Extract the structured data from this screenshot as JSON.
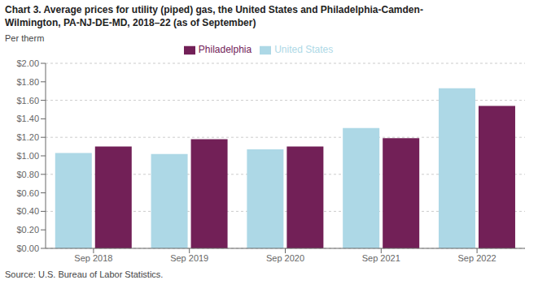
{
  "chart_data": {
    "type": "bar",
    "title": "Chart 3. Average prices for utility (piped) gas, the United States and Philadelphia-Camden-\nWilmington, PA-NJ-DE-MD, 2018–22 (as of September)",
    "y_label": "Per therm",
    "source": "Source: U.S. Bureau of Labor Statistics.",
    "categories": [
      "Sep 2018",
      "Sep 2019",
      "Sep 2020",
      "Sep 2021",
      "Sep 2022"
    ],
    "series": [
      {
        "name": "United States",
        "color": "#add8e6",
        "values": [
          1.03,
          1.02,
          1.07,
          1.3,
          1.73
        ]
      },
      {
        "name": "Philadelphia",
        "color": "#722057",
        "values": [
          1.1,
          1.18,
          1.1,
          1.19,
          1.54
        ]
      }
    ],
    "ylim": [
      0.0,
      2.0
    ],
    "yticks": [
      {
        "value": 0.0,
        "label": "$0.00"
      },
      {
        "value": 0.2,
        "label": "$0.20"
      },
      {
        "value": 0.4,
        "label": "$0.40"
      },
      {
        "value": 0.6,
        "label": "$0.60"
      },
      {
        "value": 0.8,
        "label": "$0.80"
      },
      {
        "value": 1.0,
        "label": "$1.00"
      },
      {
        "value": 1.2,
        "label": "$1.20"
      },
      {
        "value": 1.4,
        "label": "$1.40"
      },
      {
        "value": 1.6,
        "label": "$1.60"
      },
      {
        "value": 1.8,
        "label": "$1.80"
      },
      {
        "value": 2.0,
        "label": "$2.00"
      }
    ],
    "grid": true,
    "legend": "top"
  }
}
